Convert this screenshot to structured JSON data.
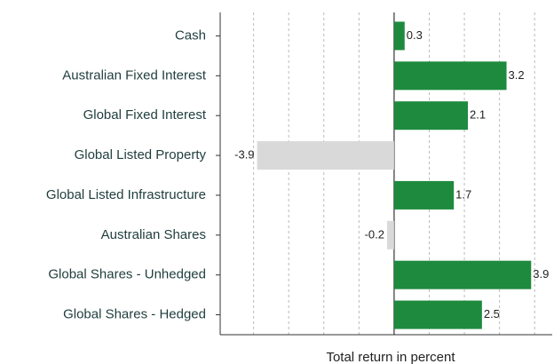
{
  "chart_data": {
    "type": "barh",
    "x_label": "Total return in percent",
    "categories": [
      "Cash",
      "Australian Fixed Interest",
      "Global Fixed Interest",
      "Global Listed Property",
      "Global Listed Infrastructure",
      "Australian Shares",
      "Global Shares - Unhedged",
      "Global Shares - Hedged"
    ],
    "values": [
      0.3,
      3.2,
      2.1,
      -3.9,
      1.7,
      -0.2,
      3.9,
      2.5
    ],
    "colors": [
      "#1e8a3e",
      "#1e8a3e",
      "#1e8a3e",
      "#d9d9d9",
      "#1e8a3e",
      "#d9d9d9",
      "#1e8a3e",
      "#1e8a3e"
    ],
    "xlim": [
      -4.95,
      4.5
    ],
    "xticks": [
      -4,
      -3,
      -2,
      -1,
      0,
      1,
      2,
      3,
      4
    ],
    "grid": true
  }
}
